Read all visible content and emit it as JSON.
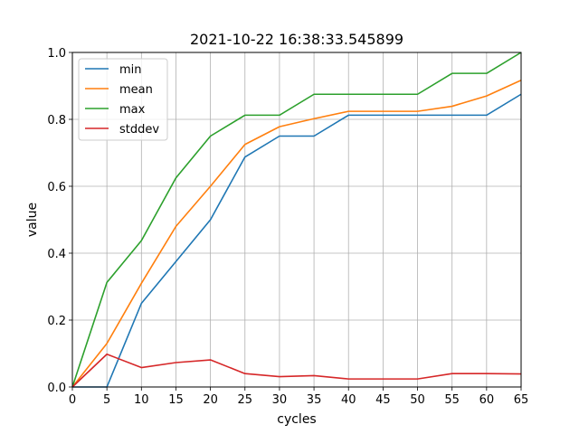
{
  "chart_data": {
    "type": "line",
    "title": "2021-10-22 16:38:33.545899",
    "xlabel": "cycles",
    "ylabel": "value",
    "xlim": [
      0,
      65
    ],
    "ylim": [
      0,
      1.0
    ],
    "x_ticks": [
      0,
      5,
      10,
      15,
      20,
      25,
      30,
      35,
      40,
      45,
      50,
      55,
      60,
      65
    ],
    "y_ticks": [
      0.0,
      0.2,
      0.4,
      0.6,
      0.8,
      1.0
    ],
    "y_tick_labels": [
      "0.0",
      "0.2",
      "0.4",
      "0.6",
      "0.8",
      "1.0"
    ],
    "grid": true,
    "legend_position": "upper-left",
    "x": [
      0,
      5,
      10,
      15,
      20,
      25,
      30,
      35,
      40,
      45,
      50,
      55,
      60,
      65
    ],
    "series": [
      {
        "name": "min",
        "color": "#1f77b4",
        "values": [
          0.0,
          0.0,
          0.25,
          0.375,
          0.5,
          0.6875,
          0.75,
          0.75,
          0.8125,
          0.8125,
          0.8125,
          0.8125,
          0.8125,
          0.875
        ]
      },
      {
        "name": "mean",
        "color": "#ff7f0e",
        "values": [
          0.0,
          0.13,
          0.31,
          0.48,
          0.6,
          0.725,
          0.778,
          0.802,
          0.824,
          0.824,
          0.824,
          0.839,
          0.87,
          0.917
        ]
      },
      {
        "name": "max",
        "color": "#2ca02c",
        "values": [
          0.0,
          0.3125,
          0.4375,
          0.625,
          0.75,
          0.8125,
          0.8125,
          0.875,
          0.875,
          0.875,
          0.875,
          0.9375,
          0.9375,
          1.0
        ]
      },
      {
        "name": "stddev",
        "color": "#d62728",
        "values": [
          0.0,
          0.098,
          0.058,
          0.073,
          0.081,
          0.04,
          0.031,
          0.034,
          0.024,
          0.024,
          0.024,
          0.04,
          0.04,
          0.039
        ]
      }
    ]
  }
}
